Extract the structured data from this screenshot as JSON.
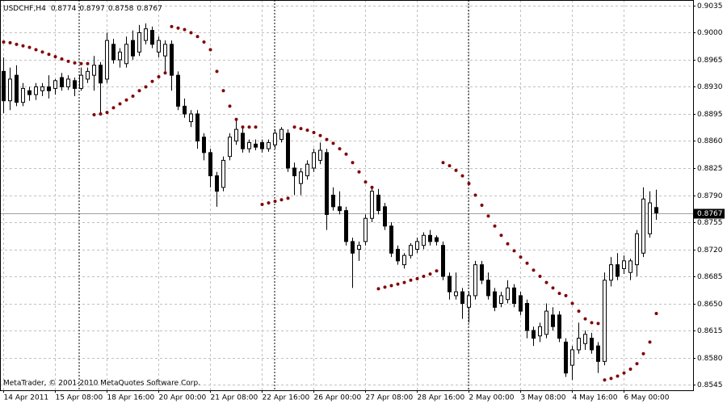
{
  "chart_data": {
    "type": "candlestick",
    "title": "USDCHF,H4",
    "footer": "MetaTrader, © 2001-2010 MetaQuotes Software Corp.",
    "categories": [
      "14 Apr 2011",
      null,
      null,
      null,
      null,
      null,
      null,
      null,
      "15 Apr 08:00",
      null,
      null,
      null,
      null,
      null,
      null,
      null,
      "18 Apr 16:00",
      null,
      null,
      null,
      null,
      null,
      null,
      null,
      "20 Apr 00:00",
      null,
      null,
      null,
      null,
      null,
      null,
      null,
      "21 Apr 08:00",
      null,
      null,
      null,
      null,
      null,
      null,
      null,
      "22 Apr 16:00",
      null,
      null,
      null,
      null,
      null,
      null,
      null,
      "26 Apr 00:00",
      null,
      null,
      null,
      null,
      null,
      null,
      null,
      "27 Apr 08:00",
      null,
      null,
      null,
      null,
      null,
      null,
      null,
      "28 Apr 16:00",
      null,
      null,
      null,
      null,
      null,
      null,
      null,
      "2 May 00:00",
      null,
      null,
      null,
      null,
      null,
      null,
      null,
      "3 May 08:00",
      null,
      null,
      null,
      null,
      null,
      null,
      null,
      "4 May 16:00",
      null,
      null,
      null,
      null,
      null,
      null,
      null,
      "6 May 00:00",
      null,
      null,
      null,
      null,
      null
    ],
    "ohlc": [
      [
        0.895,
        0.8968,
        0.8896,
        0.8912
      ],
      [
        0.8912,
        0.8955,
        0.89,
        0.894
      ],
      [
        0.8945,
        0.8958,
        0.8905,
        0.891
      ],
      [
        0.891,
        0.8935,
        0.8905,
        0.8928
      ],
      [
        0.8925,
        0.893,
        0.8912,
        0.892
      ],
      [
        0.892,
        0.8935,
        0.8913,
        0.893
      ],
      [
        0.8925,
        0.8935,
        0.8918,
        0.893
      ],
      [
        0.893,
        0.8945,
        0.8915,
        0.8925
      ],
      [
        0.8928,
        0.894,
        0.892,
        0.8938
      ],
      [
        0.8942,
        0.8948,
        0.8925,
        0.893
      ],
      [
        0.893,
        0.8945,
        0.8926,
        0.894
      ],
      [
        0.8938,
        0.8942,
        0.8918,
        0.8928
      ],
      [
        0.8928,
        0.8955,
        0.8925,
        0.8945
      ],
      [
        0.894,
        0.8955,
        0.8935,
        0.895
      ],
      [
        0.8945,
        0.897,
        0.8925,
        0.8958
      ],
      [
        0.8958,
        0.8962,
        0.8895,
        0.8935
      ],
      [
        0.894,
        0.9,
        0.8935,
        0.899
      ],
      [
        0.8985,
        0.8992,
        0.896,
        0.8965
      ],
      [
        0.8965,
        0.898,
        0.8955,
        0.8975
      ],
      [
        0.896,
        0.8995,
        0.8955,
        0.8985
      ],
      [
        0.899,
        0.9003,
        0.8965,
        0.897
      ],
      [
        0.8975,
        0.901,
        0.897,
        0.9
      ],
      [
        0.899,
        0.9012,
        0.8985,
        0.9005
      ],
      [
        0.9003,
        0.9008,
        0.898,
        0.8985
      ],
      [
        0.8975,
        0.8995,
        0.8968,
        0.899
      ],
      [
        0.897,
        0.899,
        0.895,
        0.8985
      ],
      [
        0.8985,
        0.899,
        0.8925,
        0.8945
      ],
      [
        0.8945,
        0.895,
        0.89,
        0.8905
      ],
      [
        0.8905,
        0.8915,
        0.889,
        0.8895
      ],
      [
        0.8885,
        0.89,
        0.8878,
        0.8895
      ],
      [
        0.8895,
        0.89,
        0.885,
        0.886
      ],
      [
        0.8865,
        0.887,
        0.8835,
        0.8845
      ],
      [
        0.8845,
        0.885,
        0.88,
        0.8815
      ],
      [
        0.8815,
        0.882,
        0.8775,
        0.8795
      ],
      [
        0.88,
        0.884,
        0.8795,
        0.8835
      ],
      [
        0.884,
        0.887,
        0.8835,
        0.8865
      ],
      [
        0.886,
        0.8888,
        0.8855,
        0.8875
      ],
      [
        0.887,
        0.8878,
        0.8845,
        0.885
      ],
      [
        0.885,
        0.8862,
        0.8845,
        0.8858
      ],
      [
        0.8856,
        0.8862,
        0.8848,
        0.8852
      ],
      [
        0.8858,
        0.8862,
        0.8845,
        0.885
      ],
      [
        0.885,
        0.8862,
        0.8846,
        0.8858
      ],
      [
        0.8855,
        0.8875,
        0.885,
        0.887
      ],
      [
        0.8862,
        0.8878,
        0.8858,
        0.8875
      ],
      [
        0.887,
        0.8875,
        0.882,
        0.8825
      ],
      [
        0.8825,
        0.8832,
        0.879,
        0.8815
      ],
      [
        0.8805,
        0.8825,
        0.879,
        0.882
      ],
      [
        0.8815,
        0.8835,
        0.881,
        0.883
      ],
      [
        0.8825,
        0.885,
        0.882,
        0.8845
      ],
      [
        0.8835,
        0.8858,
        0.883,
        0.8848
      ],
      [
        0.8845,
        0.885,
        0.8745,
        0.8765
      ],
      [
        0.879,
        0.88,
        0.877,
        0.8775
      ],
      [
        0.8775,
        0.8795,
        0.8765,
        0.877
      ],
      [
        0.877,
        0.8775,
        0.8725,
        0.873
      ],
      [
        0.873,
        0.8735,
        0.867,
        0.8715
      ],
      [
        0.872,
        0.873,
        0.8705,
        0.8725
      ],
      [
        0.873,
        0.8765,
        0.8725,
        0.876
      ],
      [
        0.876,
        0.88,
        0.8755,
        0.8795
      ],
      [
        0.879,
        0.8798,
        0.8765,
        0.877
      ],
      [
        0.8775,
        0.878,
        0.8745,
        0.875
      ],
      [
        0.875,
        0.8755,
        0.871,
        0.8715
      ],
      [
        0.872,
        0.8725,
        0.87,
        0.8705
      ],
      [
        0.87,
        0.8715,
        0.8695,
        0.8712
      ],
      [
        0.8712,
        0.8728,
        0.8708,
        0.8725
      ],
      [
        0.872,
        0.8735,
        0.8715,
        0.873
      ],
      [
        0.8725,
        0.8742,
        0.872,
        0.8738
      ],
      [
        0.8738,
        0.8745,
        0.8725,
        0.873
      ],
      [
        0.8735,
        0.8738,
        0.8725,
        0.873
      ],
      [
        0.8725,
        0.873,
        0.868,
        0.8685
      ],
      [
        0.8685,
        0.869,
        0.8655,
        0.8665
      ],
      [
        0.866,
        0.869,
        0.8655,
        0.8665
      ],
      [
        0.8665,
        0.867,
        0.863,
        0.865
      ],
      [
        0.8645,
        0.8665,
        0.8625,
        0.866
      ],
      [
        0.866,
        0.8705,
        0.8655,
        0.87
      ],
      [
        0.87,
        0.8705,
        0.8675,
        0.868
      ],
      [
        0.868,
        0.869,
        0.8655,
        0.866
      ],
      [
        0.8665,
        0.867,
        0.864,
        0.8645
      ],
      [
        0.865,
        0.8665,
        0.8645,
        0.866
      ],
      [
        0.8655,
        0.868,
        0.865,
        0.867
      ],
      [
        0.867,
        0.8675,
        0.8645,
        0.865
      ],
      [
        0.866,
        0.8665,
        0.8635,
        0.864
      ],
      [
        0.865,
        0.8655,
        0.8605,
        0.8615
      ],
      [
        0.8615,
        0.862,
        0.8595,
        0.8605
      ],
      [
        0.8608,
        0.8625,
        0.86,
        0.862
      ],
      [
        0.861,
        0.865,
        0.8605,
        0.864
      ],
      [
        0.8635,
        0.8645,
        0.8615,
        0.862
      ],
      [
        0.8635,
        0.864,
        0.86,
        0.8605
      ],
      [
        0.86,
        0.8605,
        0.8555,
        0.856
      ],
      [
        0.857,
        0.8595,
        0.8551,
        0.859
      ],
      [
        0.859,
        0.8625,
        0.8585,
        0.8605
      ],
      [
        0.8598,
        0.8615,
        0.859,
        0.861
      ],
      [
        0.8605,
        0.8612,
        0.8585,
        0.859
      ],
      [
        0.8595,
        0.86,
        0.856,
        0.8575
      ],
      [
        0.8575,
        0.869,
        0.857,
        0.868
      ],
      [
        0.868,
        0.871,
        0.8672,
        0.87
      ],
      [
        0.87,
        0.8715,
        0.868,
        0.8685
      ],
      [
        0.8695,
        0.8712,
        0.8688,
        0.8705
      ],
      [
        0.869,
        0.8708,
        0.868,
        0.8705
      ],
      [
        0.87,
        0.8745,
        0.8685,
        0.874
      ],
      [
        0.8715,
        0.88,
        0.871,
        0.8785
      ],
      [
        0.874,
        0.8795,
        0.8735,
        0.878
      ],
      [
        0.8774,
        0.8797,
        0.8758,
        0.8767
      ]
    ],
    "sar": {
      "color": "#800000",
      "values": [
        0.8988,
        0.8987,
        0.8985,
        0.8983,
        0.8981,
        0.8978,
        0.8975,
        0.8972,
        0.8969,
        0.8966,
        0.8963,
        0.8961,
        0.896,
        0.896,
        0.8894,
        0.8895,
        0.8897,
        0.8903,
        0.8908,
        0.8913,
        0.8918,
        0.8925,
        0.893,
        0.8937,
        0.8943,
        0.8948,
        0.9008,
        0.9006,
        0.9004,
        0.9,
        0.8995,
        0.8988,
        0.8978,
        0.895,
        0.8925,
        0.8905,
        0.8888,
        0.8878,
        0.8878,
        0.8878,
        0.8778,
        0.878,
        0.8782,
        0.8784,
        0.8786,
        0.8878,
        0.8876,
        0.8874,
        0.8871,
        0.8867,
        0.8862,
        0.8857,
        0.885,
        0.8843,
        0.8832,
        0.882,
        0.8807,
        0.88,
        0.8669,
        0.8671,
        0.8673,
        0.8675,
        0.8677,
        0.868,
        0.8682,
        0.8685,
        0.8688,
        0.8692,
        0.8832,
        0.8828,
        0.8822,
        0.8815,
        0.8805,
        0.879,
        0.8777,
        0.8763,
        0.875,
        0.8738,
        0.8727,
        0.8718,
        0.871,
        0.8702,
        0.8693,
        0.8685,
        0.8677,
        0.867,
        0.8663,
        0.866,
        0.865,
        0.864,
        0.863,
        0.8625,
        0.8624,
        0.8551,
        0.8553,
        0.8556,
        0.856,
        0.8565,
        0.8572,
        0.8585,
        0.86,
        0.8637
      ]
    },
    "up_color": "#ffffff",
    "down_color": "#000000",
    "ylim": [
      0.85377,
      0.90423
    ],
    "yticks": [
      0.9035,
      {
        "value": 0.9,
        "label": "0.9000"
      },
      0.8965,
      {
        "value": 0.893,
        "label": "0.8930"
      },
      0.8895,
      {
        "value": 0.886,
        "label": "0.8860"
      },
      0.8825,
      {
        "value": 0.879,
        "label": "0.8790"
      },
      0.8755,
      {
        "value": 0.872,
        "label": "0.8720"
      },
      0.8685,
      {
        "value": 0.865,
        "label": "0.8650"
      },
      0.8615,
      {
        "value": 0.858,
        "label": "0.8580"
      },
      0.8545
    ],
    "grid": true
  }
}
